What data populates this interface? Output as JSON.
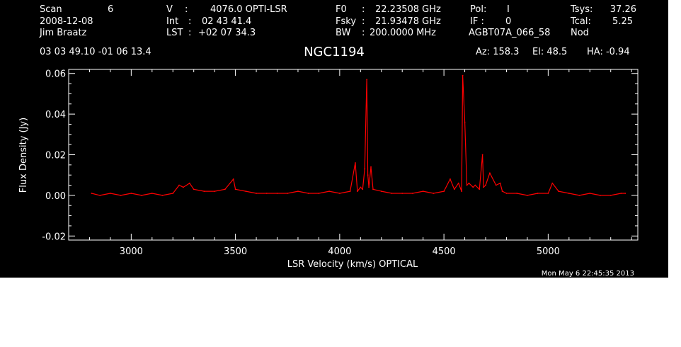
{
  "header": {
    "scan_label": "Scan",
    "scan_value": "6",
    "date": "2008-12-08",
    "observer": "Jim Braatz",
    "v_label": "V",
    "v_value": "4076.0 OPTI-LSR",
    "int_label": "Int",
    "int_value": "02 43 41.4",
    "lst_label": "LST",
    "lst_value": "+02 07 34.3",
    "f0_label": "F0",
    "f0_value": "22.23508 GHz",
    "fsky_label": "Fsky",
    "fsky_value": "21.93478 GHz",
    "bw_label": "BW",
    "bw_value": "200.0000 MHz",
    "pol_label": "Pol:",
    "pol_value": "I",
    "if_label": "IF :",
    "if_value": "0",
    "project": "AGBT07A_066_58",
    "tsys_label": "Tsys:",
    "tsys_value": "37.26",
    "tcal_label": "Tcal:",
    "tcal_value": "5.25",
    "proc": "Nod",
    "coords": "03 03 49.10  -01 06 13.4",
    "source": "NGC1194",
    "az": "Az: 158.3",
    "el": "El:  48.5",
    "ha": "HA: -0.94"
  },
  "footer": {
    "timestamp": "Mon May  6 22:45:35 2013"
  },
  "colors": {
    "background": "#000000",
    "axes": "#ffffff",
    "trace": "#ff0000"
  },
  "chart_data": {
    "type": "line",
    "xlabel": "LSR Velocity (km/s) OPTICAL",
    "ylabel": "Flux Density (Jy)",
    "xlim": [
      2700,
      5430
    ],
    "ylim": [
      -0.022,
      0.062
    ],
    "xticks": [
      3000,
      3500,
      4000,
      4500,
      5000
    ],
    "xtick_labels": [
      "3000",
      "3500",
      "4000",
      "4500",
      "5000"
    ],
    "yticks": [
      -0.02,
      0.0,
      0.02,
      0.04,
      0.06
    ],
    "ytick_labels": [
      "-0.02",
      "0.00",
      "0.02",
      "0.04",
      "0.06"
    ],
    "grid": false,
    "legend": "none",
    "series": [
      {
        "x": [
          2810,
          2850,
          2900,
          2950,
          3000,
          3050,
          3100,
          3150,
          3200,
          3230,
          3250,
          3280,
          3300,
          3350,
          3400,
          3450,
          3490,
          3500,
          3550,
          3600,
          3650,
          3700,
          3750,
          3800,
          3850,
          3900,
          3950,
          4000,
          4050,
          4075,
          4085,
          4100,
          4110,
          4120,
          4130,
          4135,
          4140,
          4150,
          4160,
          4200,
          4250,
          4300,
          4350,
          4400,
          4450,
          4500,
          4530,
          4550,
          4570,
          4585,
          4590,
          4600,
          4610,
          4620,
          4640,
          4650,
          4670,
          4685,
          4690,
          4700,
          4720,
          4750,
          4770,
          4780,
          4800,
          4850,
          4900,
          4950,
          5000,
          5020,
          5050,
          5100,
          5150,
          5200,
          5250,
          5300,
          5350,
          5370
        ],
        "y": [
          0.001,
          0.0,
          0.001,
          0.0,
          0.001,
          0.0,
          0.001,
          0.0,
          0.001,
          0.005,
          0.004,
          0.006,
          0.003,
          0.002,
          0.002,
          0.003,
          0.008,
          0.003,
          0.002,
          0.001,
          0.001,
          0.001,
          0.001,
          0.002,
          0.001,
          0.001,
          0.002,
          0.001,
          0.002,
          0.016,
          0.002,
          0.004,
          0.003,
          0.013,
          0.057,
          0.01,
          0.004,
          0.014,
          0.003,
          0.002,
          0.001,
          0.001,
          0.001,
          0.002,
          0.001,
          0.002,
          0.008,
          0.003,
          0.006,
          0.002,
          0.059,
          0.036,
          0.005,
          0.006,
          0.004,
          0.005,
          0.003,
          0.02,
          0.004,
          0.005,
          0.011,
          0.005,
          0.006,
          0.002,
          0.001,
          0.001,
          0.0,
          0.001,
          0.001,
          0.006,
          0.002,
          0.001,
          0.0,
          0.001,
          0.0,
          0.0,
          0.001,
          0.001
        ]
      }
    ]
  }
}
